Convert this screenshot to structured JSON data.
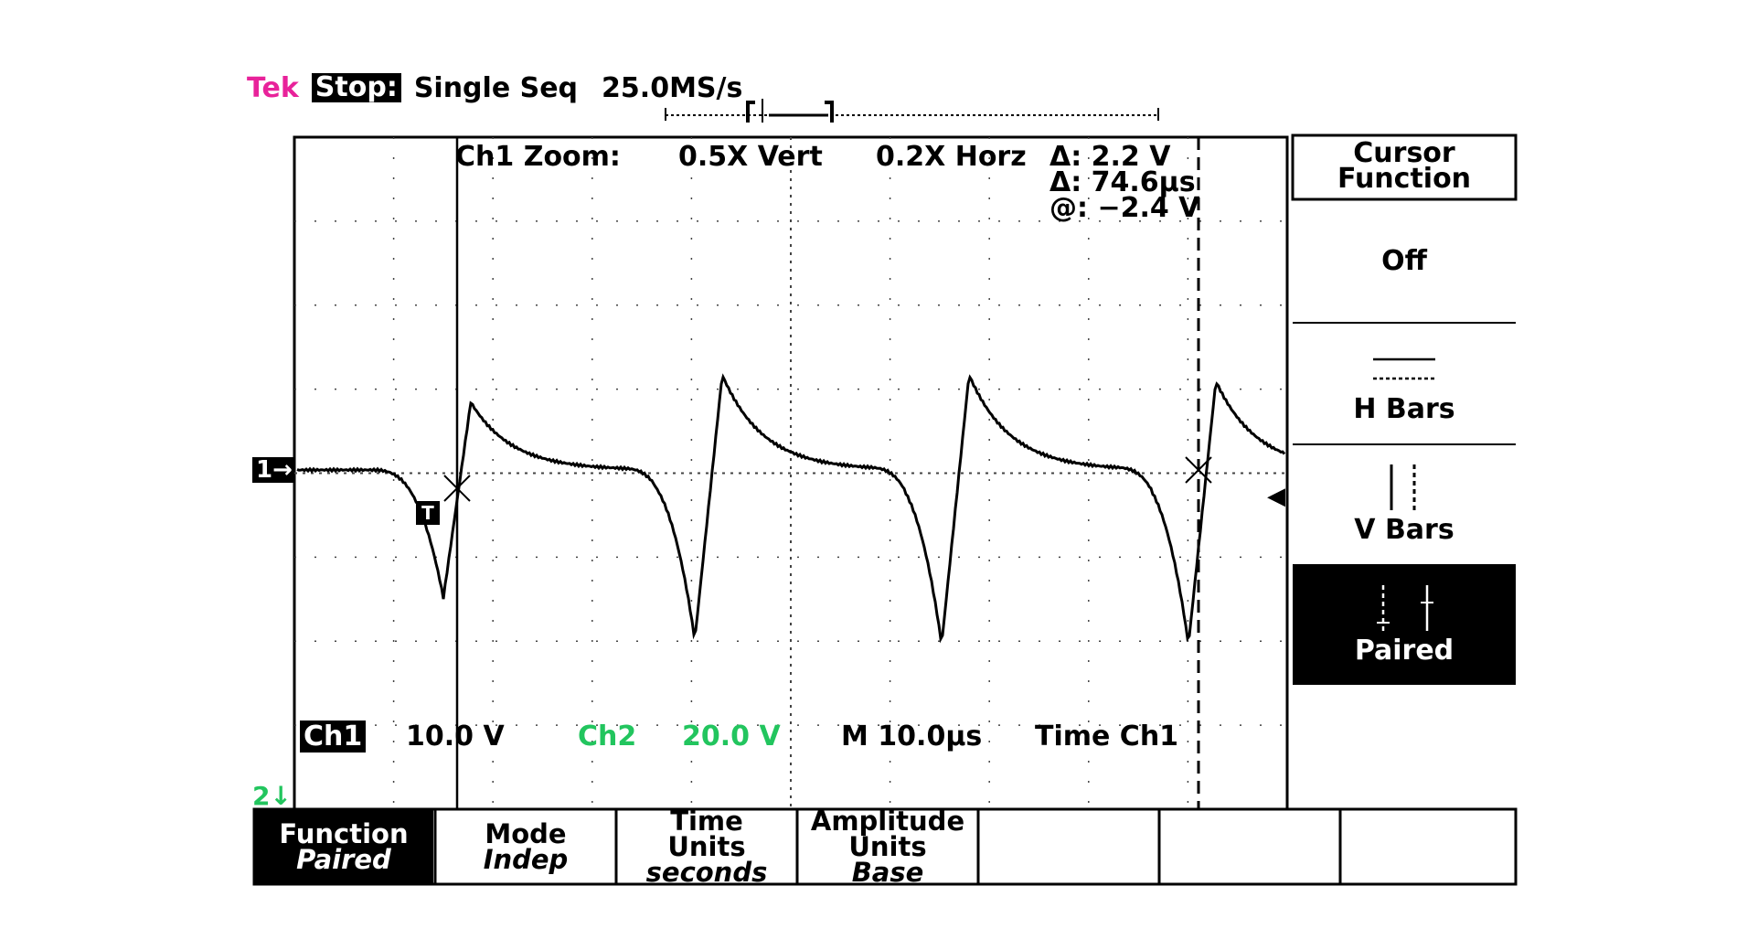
{
  "header": {
    "brand": "Tek",
    "state": "Stop:",
    "acquisition": "Single Seq",
    "sample_rate": "25.0MS/s"
  },
  "readouts": {
    "zoom_label": "Ch1 Zoom:",
    "vert_zoom": "0.5X Vert",
    "horz_zoom": "0.2X Horz",
    "delta_v": "Δ: 2.2 V",
    "delta_t": "Δ: 74.6μs",
    "at_v": "@: −2.4 V"
  },
  "channels": {
    "ch1_label": "Ch1",
    "ch1_scale": "10.0 V",
    "ch2_label": "Ch2",
    "ch2_scale": "20.0 V",
    "ch2_color": "#22c55e",
    "timebase": "M 10.0μs",
    "trigger": "Time Ch1",
    "ch1_marker": "1→",
    "ch2_marker": "2↓",
    "trigger_marker": "T"
  },
  "side_menu": {
    "title_line1": "Cursor",
    "title_line2": "Function",
    "off": "Off",
    "hbars": "H Bars",
    "vbars": "V Bars",
    "paired": "Paired"
  },
  "bottom_menu": [
    {
      "label": "Function",
      "value": "Paired"
    },
    {
      "label": "Mode",
      "value": "Indep"
    },
    {
      "label": "Time Units",
      "value": "seconds"
    },
    {
      "label": "Amplitude Units",
      "value": "Base"
    }
  ],
  "colors": {
    "brand": "#e8229a",
    "ch2": "#22c55e"
  }
}
